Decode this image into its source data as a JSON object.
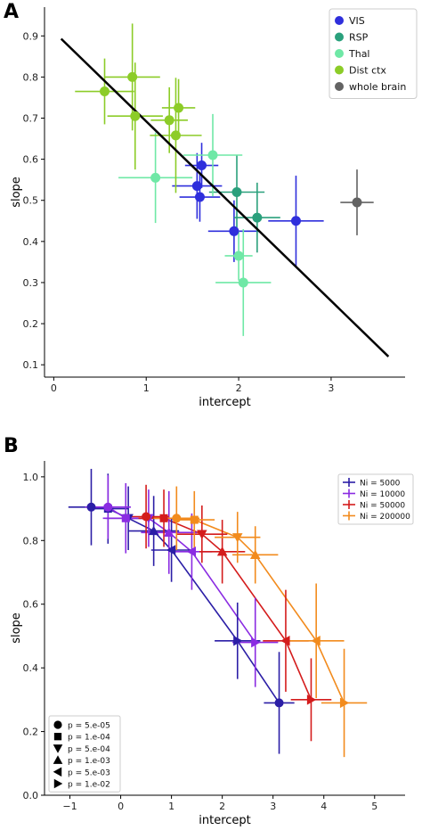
{
  "chart_data": [
    {
      "panel": "A",
      "type": "scatter",
      "xlabel": "intercept",
      "ylabel": "slope",
      "xlim": [
        -0.1,
        3.8
      ],
      "ylim": [
        0.07,
        0.97
      ],
      "xticks": [
        "0",
        "1",
        "2",
        "3"
      ],
      "xtick_values": [
        0,
        1,
        2,
        3
      ],
      "yticks": [
        "0.1",
        "0.2",
        "0.3",
        "0.4",
        "0.5",
        "0.6",
        "0.7",
        "0.8",
        "0.9"
      ],
      "ytick_values": [
        0.1,
        0.2,
        0.3,
        0.4,
        0.5,
        0.6,
        0.7,
        0.8,
        0.9
      ],
      "legend_position": "top-right",
      "grid": false,
      "fit_line": {
        "x": [
          0.08,
          3.62
        ],
        "y": [
          0.893,
          0.12
        ],
        "color": "#000000"
      },
      "series": [
        {
          "name": "VIS",
          "color": "#2f2fdc",
          "points": [
            {
              "x": 1.6,
              "y": 0.585,
              "xerr": 0.18,
              "yerr": 0.055
            },
            {
              "x": 1.55,
              "y": 0.535,
              "xerr": 0.27,
              "yerr": 0.08
            },
            {
              "x": 1.58,
              "y": 0.508,
              "xerr": 0.22,
              "yerr": 0.06
            },
            {
              "x": 1.95,
              "y": 0.425,
              "xerr": 0.28,
              "yerr": 0.075
            },
            {
              "x": 2.62,
              "y": 0.45,
              "xerr": 0.3,
              "yerr": 0.11
            }
          ]
        },
        {
          "name": "RSP",
          "color": "#2aa07c",
          "points": [
            {
              "x": 1.98,
              "y": 0.52,
              "xerr": 0.3,
              "yerr": 0.09
            },
            {
              "x": 2.2,
              "y": 0.458,
              "xerr": 0.25,
              "yerr": 0.085
            }
          ]
        },
        {
          "name": "Thal",
          "color": "#6fe8a6",
          "points": [
            {
              "x": 1.1,
              "y": 0.555,
              "xerr": 0.4,
              "yerr": 0.11
            },
            {
              "x": 1.72,
              "y": 0.61,
              "xerr": 0.32,
              "yerr": 0.1
            },
            {
              "x": 2.0,
              "y": 0.365,
              "xerr": 0.15,
              "yerr": 0.06
            },
            {
              "x": 2.05,
              "y": 0.3,
              "xerr": 0.3,
              "yerr": 0.13
            }
          ]
        },
        {
          "name": "Dist ctx",
          "color": "#8ccc28",
          "points": [
            {
              "x": 0.55,
              "y": 0.765,
              "xerr": 0.32,
              "yerr": 0.08
            },
            {
              "x": 0.85,
              "y": 0.8,
              "xerr": 0.3,
              "yerr": 0.13
            },
            {
              "x": 0.88,
              "y": 0.705,
              "xerr": 0.3,
              "yerr": 0.13
            },
            {
              "x": 1.25,
              "y": 0.695,
              "xerr": 0.2,
              "yerr": 0.08
            },
            {
              "x": 1.35,
              "y": 0.725,
              "xerr": 0.18,
              "yerr": 0.07
            },
            {
              "x": 1.32,
              "y": 0.658,
              "xerr": 0.28,
              "yerr": 0.14
            }
          ]
        },
        {
          "name": "whole brain",
          "color": "#636363",
          "points": [
            {
              "x": 3.28,
              "y": 0.495,
              "xerr": 0.18,
              "yerr": 0.08
            }
          ]
        }
      ]
    },
    {
      "panel": "B",
      "type": "line",
      "xlabel": "intercept",
      "ylabel": "slope",
      "xlim": [
        -1.5,
        5.6
      ],
      "ylim": [
        0.0,
        1.05
      ],
      "xticks": [
        "−1",
        "0",
        "1",
        "2",
        "3",
        "4",
        "5"
      ],
      "xtick_values": [
        -1,
        0,
        1,
        2,
        3,
        4,
        5
      ],
      "yticks": [
        "0.0",
        "0.2",
        "0.4",
        "0.6",
        "0.8",
        "1.0"
      ],
      "ytick_values": [
        0,
        0.2,
        0.4,
        0.6,
        0.8,
        1.0
      ],
      "legend_position": "top-right",
      "marker_legend_position": "bottom-left",
      "grid": false,
      "markers": [
        {
          "shape": "circle",
          "label": "p = 5.e-05"
        },
        {
          "shape": "square",
          "label": "p = 1.e-04"
        },
        {
          "shape": "triangle-down",
          "label": "p = 5.e-04"
        },
        {
          "shape": "triangle-up",
          "label": "p = 1.e-03"
        },
        {
          "shape": "triangle-left",
          "label": "p = 5.e-03"
        },
        {
          "shape": "triangle-right",
          "label": "p = 1.e-02"
        }
      ],
      "series": [
        {
          "name": "Ni = 5000",
          "color": "#2b1ea6",
          "points": [
            {
              "x": -0.58,
              "y": 0.905,
              "xerr": 0.45,
              "yerr": 0.12
            },
            {
              "x": -0.25,
              "y": 0.9,
              "xerr": 0.4,
              "yerr": 0.11
            },
            {
              "x": 0.15,
              "y": 0.87,
              "xerr": 0.45,
              "yerr": 0.1
            },
            {
              "x": 0.65,
              "y": 0.83,
              "xerr": 0.5,
              "yerr": 0.11
            },
            {
              "x": 1.0,
              "y": 0.77,
              "xerr": 0.4,
              "yerr": 0.1
            },
            {
              "x": 2.3,
              "y": 0.485,
              "xerr": 0.45,
              "yerr": 0.12
            },
            {
              "x": 3.12,
              "y": 0.29,
              "xerr": 0.3,
              "yerr": 0.16
            }
          ]
        },
        {
          "name": "Ni = 10000",
          "color": "#8a2be2",
          "points": [
            {
              "x": -0.25,
              "y": 0.905,
              "xerr": 0.45,
              "yerr": 0.1
            },
            {
              "x": 0.1,
              "y": 0.87,
              "xerr": 0.45,
              "yerr": 0.11
            },
            {
              "x": 0.55,
              "y": 0.87,
              "xerr": 0.5,
              "yerr": 0.09
            },
            {
              "x": 0.95,
              "y": 0.825,
              "xerr": 0.55,
              "yerr": 0.13
            },
            {
              "x": 1.4,
              "y": 0.765,
              "xerr": 0.4,
              "yerr": 0.12
            },
            {
              "x": 2.65,
              "y": 0.48,
              "xerr": 0.45,
              "yerr": 0.14
            }
          ]
        },
        {
          "name": "Ni = 50000",
          "color": "#d41c1c",
          "points": [
            {
              "x": 0.5,
              "y": 0.875,
              "xerr": 0.45,
              "yerr": 0.1
            },
            {
              "x": 0.85,
              "y": 0.87,
              "xerr": 0.5,
              "yerr": 0.09
            },
            {
              "x": 1.6,
              "y": 0.82,
              "xerr": 0.5,
              "yerr": 0.09
            },
            {
              "x": 2.0,
              "y": 0.765,
              "xerr": 0.45,
              "yerr": 0.1
            },
            {
              "x": 3.25,
              "y": 0.485,
              "xerr": 0.45,
              "yerr": 0.16
            },
            {
              "x": 3.75,
              "y": 0.3,
              "xerr": 0.4,
              "yerr": 0.13
            }
          ]
        },
        {
          "name": "Ni = 200000",
          "color": "#f28b1d",
          "points": [
            {
              "x": 1.1,
              "y": 0.87,
              "xerr": 0.45,
              "yerr": 0.1
            },
            {
              "x": 1.45,
              "y": 0.865,
              "xerr": 0.4,
              "yerr": 0.09
            },
            {
              "x": 2.3,
              "y": 0.81,
              "xerr": 0.45,
              "yerr": 0.08
            },
            {
              "x": 2.65,
              "y": 0.755,
              "xerr": 0.45,
              "yerr": 0.09
            },
            {
              "x": 3.85,
              "y": 0.485,
              "xerr": 0.55,
              "yerr": 0.18
            },
            {
              "x": 4.4,
              "y": 0.29,
              "xerr": 0.45,
              "yerr": 0.17
            }
          ]
        }
      ]
    }
  ]
}
